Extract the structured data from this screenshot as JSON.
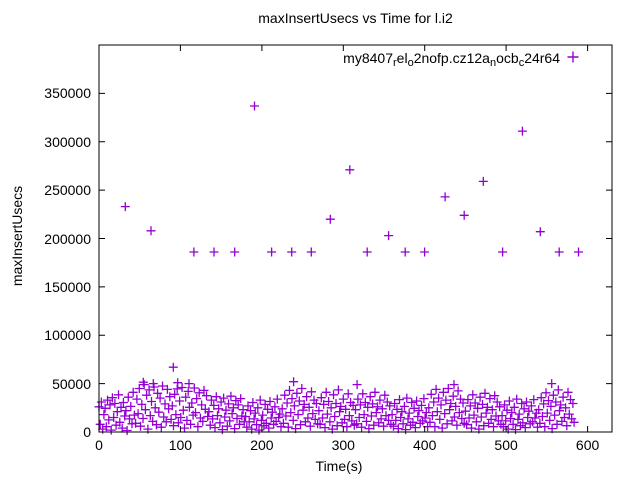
{
  "title": "maxInsertUsecs vs Time for l.i2",
  "axes": {
    "xlabel": "Time(s)",
    "ylabel": "maxInsertUsecs",
    "xtick_labels": [
      "0",
      "100",
      "200",
      "300",
      "400",
      "500",
      "600"
    ],
    "ytick_labels": [
      "0",
      "50000",
      "100000",
      "150000",
      "200000",
      "250000",
      "300000",
      "350000"
    ]
  },
  "legend": {
    "series_name": "my8407_rel_o2nofp.cz12a_nocb_c24r64",
    "segments": [
      {
        "t": "my8407",
        "sub": false
      },
      {
        "t": "r",
        "sub": true
      },
      {
        "t": "el",
        "sub": false
      },
      {
        "t": "o",
        "sub": true
      },
      {
        "t": "2nofp.cz12a",
        "sub": false
      },
      {
        "t": "n",
        "sub": true
      },
      {
        "t": "ocb",
        "sub": false
      },
      {
        "t": "c",
        "sub": true
      },
      {
        "t": "24r64",
        "sub": false
      }
    ]
  },
  "colors": {
    "marker": "#9400D3",
    "axis": "#000000",
    "background": "#ffffff"
  },
  "chart_data": {
    "type": "scatter",
    "title": "maxInsertUsecs vs Time for l.i2",
    "xlabel": "Time(s)",
    "ylabel": "maxInsertUsecs",
    "xlim": [
      0,
      630
    ],
    "ylim": [
      0,
      400000
    ],
    "xticks": [
      0,
      100,
      200,
      300,
      400,
      500,
      600
    ],
    "yticks": [
      0,
      50000,
      100000,
      150000,
      200000,
      250000,
      300000,
      350000
    ],
    "grid": false,
    "legend_position": "top-right-inside",
    "series": [
      {
        "name": "my8407_rel_o2nofp.cz12a_nocb_c24r64",
        "marker": "plus",
        "color": "#9400D3",
        "outliers": [
          [
            32.3,
            233000
          ],
          [
            63.8,
            208000
          ],
          [
            191,
            337000
          ],
          [
            284,
            220000
          ],
          [
            308,
            271000
          ],
          [
            355.6,
            203000
          ],
          [
            425,
            243000
          ],
          [
            448.5,
            224000
          ],
          [
            472,
            259000
          ],
          [
            520,
            311000
          ],
          [
            542,
            207000
          ]
        ],
        "band": {
          "value": 186000,
          "times": [
            116.6,
            141.2,
            166.6,
            212,
            236.6,
            260.7,
            329.4,
            376,
            399.9,
            495.6,
            565.1,
            588.9
          ]
        },
        "peaks": [
          [
            54.4,
            51500
          ],
          [
            66.7,
            50000
          ],
          [
            91.2,
            67000
          ],
          [
            96.6,
            51000
          ],
          [
            110.5,
            50000
          ],
          [
            239,
            52000
          ],
          [
            317,
            49000
          ],
          [
            436,
            49000
          ],
          [
            556,
            50000
          ]
        ],
        "cloud": {
          "t_start": 0,
          "t_step": 1.5,
          "values": [
            26000,
            8000,
            31000,
            3000,
            18000,
            24500,
            5500,
            33000,
            12500,
            28000,
            2000,
            35500,
            15000,
            29500,
            7000,
            21000,
            38500,
            10000,
            25500,
            4000,
            30500,
            16500,
            22000,
            1500,
            36000,
            13500,
            26500,
            8500,
            41000,
            17500,
            9000,
            34000,
            19000,
            45000,
            6000,
            28500,
            14000,
            49000,
            23000,
            38000,
            3000,
            43500,
            17000,
            31500,
            11000,
            46500,
            25000,
            7500,
            40000,
            20500,
            35000,
            5000,
            47500,
            15500,
            29000,
            10500,
            44000,
            24000,
            36500,
            13000,
            27000,
            6500,
            39000,
            18000,
            44500,
            9500,
            32000,
            15000,
            46000,
            22500,
            4000,
            36000,
            12000,
            42000,
            25500,
            8000,
            30000,
            17500,
            45500,
            20000,
            34500,
            5500,
            40500,
            14500,
            28000,
            11000,
            43000,
            23500,
            37500,
            16000,
            21000,
            7000,
            33000,
            13500,
            27500,
            4500,
            36500,
            17000,
            24000,
            9500,
            31000,
            2500,
            35000,
            15500,
            22500,
            6000,
            29000,
            11500,
            37000,
            19000,
            25000,
            3500,
            32500,
            14000,
            28000,
            8000,
            34500,
            16500,
            23000,
            10500,
            16000,
            5000,
            27000,
            10500,
            22000,
            3000,
            30500,
            13500,
            19500,
            7500,
            25000,
            2000,
            33000,
            12000,
            17500,
            6500,
            28500,
            9000,
            23500,
            4000,
            31500,
            14500,
            20500,
            8000,
            26000,
            11000,
            34000,
            15000,
            18500,
            5500,
            24000,
            9000,
            38000,
            16500,
            30000,
            5000,
            43000,
            20000,
            34500,
            12000,
            27000,
            3500,
            40000,
            18000,
            32000,
            7500,
            45000,
            22500,
            28500,
            10500,
            36500,
            14500,
            25500,
            6000,
            41500,
            19000,
            33000,
            13000,
            29500,
            8500,
            22000,
            8000,
            35500,
            14500,
            28500,
            4500,
            41000,
            18500,
            31500,
            10500,
            25000,
            3000,
            38500,
            16000,
            29500,
            6500,
            43500,
            21000,
            26500,
            9500,
            34000,
            13000,
            23500,
            5500,
            39500,
            17000,
            30500,
            11500,
            27500,
            7000,
            23000,
            8500,
            34000,
            15000,
            28000,
            5000,
            39500,
            18000,
            30500,
            11000,
            25500,
            3500,
            36500,
            16500,
            29000,
            7000,
            41000,
            20000,
            26000,
            9500,
            33000,
            13500,
            24000,
            6000,
            38000,
            17000,
            31000,
            12000,
            27000,
            8000,
            18000,
            6000,
            29500,
            12000,
            23500,
            3500,
            33500,
            15000,
            21000,
            8500,
            26500,
            2500,
            35000,
            13500,
            19500,
            7000,
            30500,
            10000,
            24500,
            4500,
            32000,
            16000,
            22000,
            9000,
            27500,
            11500,
            34500,
            14500,
            20000,
            5500,
            25000,
            10000,
            39000,
            17000,
            31000,
            5500,
            44000,
            21000,
            35000,
            13000,
            28000,
            4000,
            41000,
            19000,
            33000,
            8500,
            45000,
            23000,
            29500,
            11500,
            37000,
            15500,
            26500,
            7000,
            42500,
            20000,
            34000,
            14000,
            30000,
            9000,
            21500,
            7500,
            33500,
            14500,
            27000,
            4000,
            38500,
            17500,
            30000,
            10500,
            24500,
            3000,
            36000,
            15500,
            28500,
            6500,
            40000,
            19500,
            25500,
            9000,
            34500,
            13000,
            23000,
            5500,
            37500,
            16500,
            31000,
            11500,
            26000,
            8000,
            17000,
            5500,
            28000,
            11500,
            22500,
            3000,
            32000,
            14000,
            20000,
            8000,
            25500,
            2500,
            34000,
            13000,
            18500,
            6500,
            29500,
            9500,
            24000,
            4500,
            31000,
            15000,
            21500,
            8500,
            27000,
            10500,
            33500,
            14500,
            19500,
            5000,
            23000,
            9000,
            35500,
            16000,
            29000,
            5500,
            40500,
            19500,
            32500,
            12000,
            26500,
            3500,
            38000,
            17500,
            31000,
            8000,
            43500,
            22000,
            28000,
            11000,
            36000,
            15000,
            25000,
            6500,
            41000,
            18500,
            33500,
            13500,
            29500,
            10000
          ]
        }
      }
    ]
  }
}
